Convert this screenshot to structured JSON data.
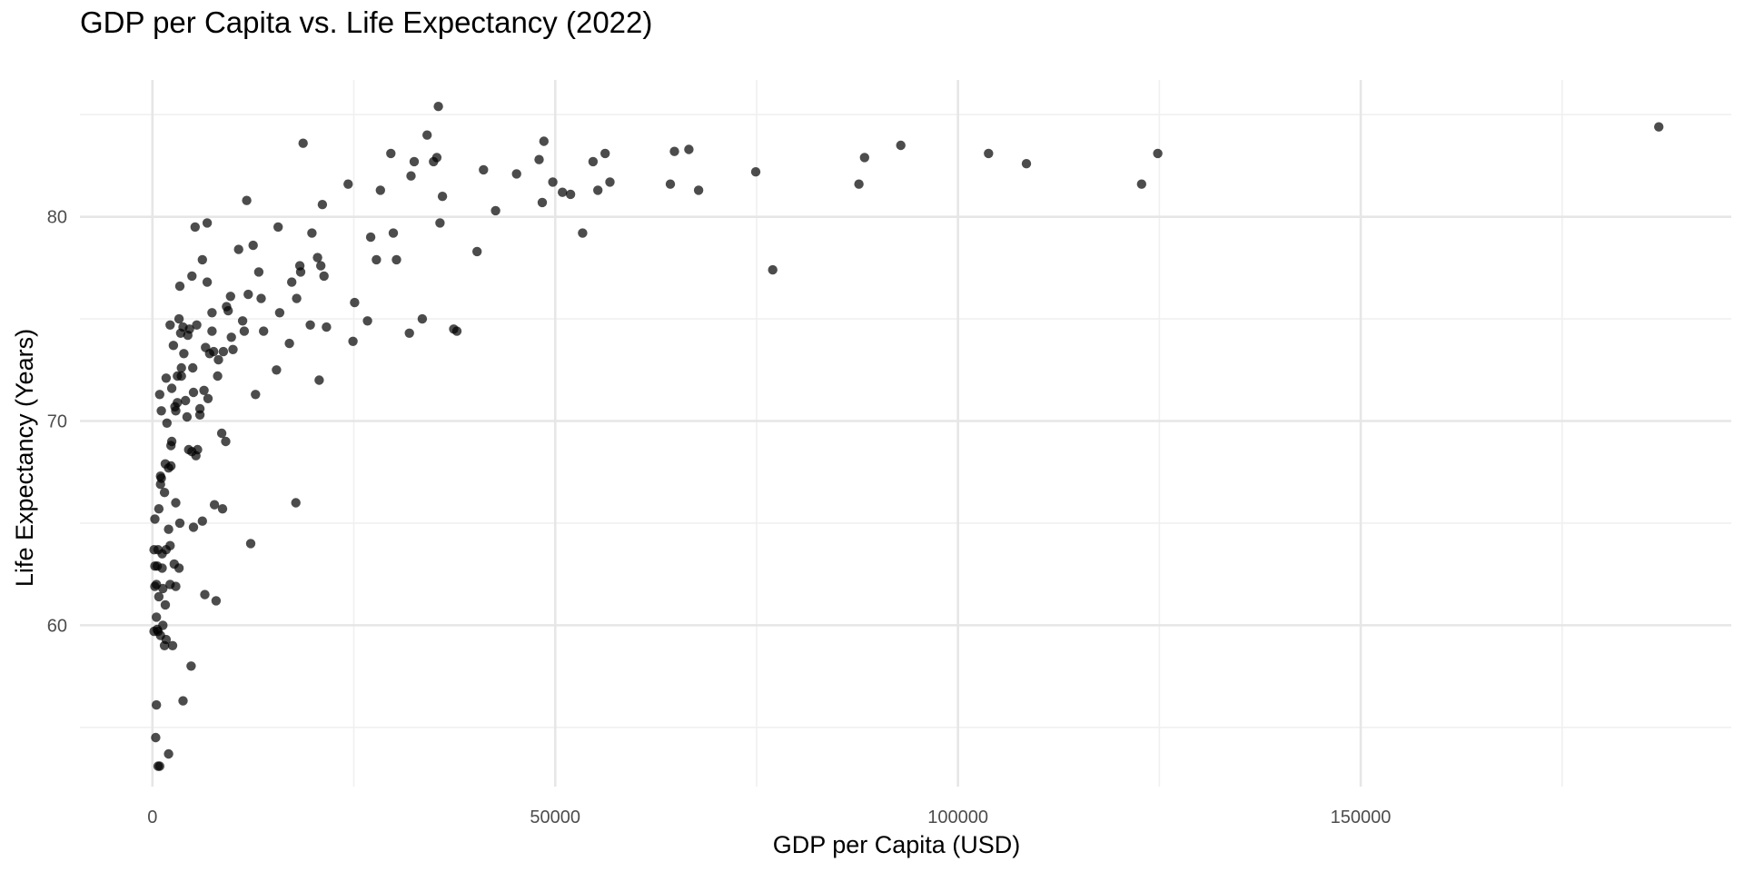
{
  "chart_data": {
    "type": "scatter",
    "title": "GDP per Capita vs. Life Expectancy (2022)",
    "xlabel": "GDP per Capita (USD)",
    "ylabel": "Life Expectancy (Years)",
    "xlim": [
      -9000,
      196000
    ],
    "ylim": [
      52.1,
      86.7
    ],
    "x_ticks": [
      0,
      50000,
      100000,
      150000
    ],
    "x_tick_labels": [
      "0",
      "50000",
      "100000",
      "150000"
    ],
    "x_minor": [
      25000,
      75000,
      125000,
      175000
    ],
    "y_ticks": [
      60,
      70,
      80
    ],
    "y_tick_labels": [
      "60",
      "70",
      "80"
    ],
    "y_minor": [
      55,
      65,
      75,
      85
    ],
    "grid": true,
    "legend": "none",
    "point_color": "#000000",
    "point_alpha": 0.7,
    "points": [
      [
        187000,
        84.4
      ],
      [
        124800,
        83.1
      ],
      [
        122800,
        81.6
      ],
      [
        108500,
        82.6
      ],
      [
        103800,
        83.1
      ],
      [
        92900,
        83.5
      ],
      [
        88400,
        82.9
      ],
      [
        87700,
        81.6
      ],
      [
        77000,
        77.4
      ],
      [
        74900,
        82.2
      ],
      [
        67800,
        81.3
      ],
      [
        66600,
        83.3
      ],
      [
        64800,
        83.2
      ],
      [
        64300,
        81.6
      ],
      [
        56800,
        81.7
      ],
      [
        56200,
        83.1
      ],
      [
        55300,
        81.3
      ],
      [
        54700,
        82.7
      ],
      [
        53400,
        79.2
      ],
      [
        51900,
        81.1
      ],
      [
        50900,
        81.2
      ],
      [
        49700,
        81.7
      ],
      [
        48600,
        83.7
      ],
      [
        48400,
        80.7
      ],
      [
        48000,
        82.8
      ],
      [
        45200,
        82.1
      ],
      [
        42600,
        80.3
      ],
      [
        41100,
        82.3
      ],
      [
        40300,
        78.3
      ],
      [
        37800,
        74.4
      ],
      [
        37400,
        74.5
      ],
      [
        36000,
        81.0
      ],
      [
        35700,
        79.7
      ],
      [
        35500,
        85.4
      ],
      [
        35300,
        82.9
      ],
      [
        34900,
        82.7
      ],
      [
        34100,
        84.0
      ],
      [
        33500,
        75.0
      ],
      [
        32500,
        82.7
      ],
      [
        32100,
        82.0
      ],
      [
        31900,
        74.3
      ],
      [
        30300,
        77.9
      ],
      [
        29900,
        79.2
      ],
      [
        29600,
        83.1
      ],
      [
        28300,
        81.3
      ],
      [
        27800,
        77.9
      ],
      [
        27100,
        79.0
      ],
      [
        26700,
        74.9
      ],
      [
        25100,
        75.8
      ],
      [
        24900,
        73.9
      ],
      [
        24300,
        81.6
      ],
      [
        21600,
        74.6
      ],
      [
        21300,
        77.1
      ],
      [
        21100,
        80.6
      ],
      [
        20900,
        77.6
      ],
      [
        20700,
        72.0
      ],
      [
        20500,
        78.0
      ],
      [
        19800,
        79.2
      ],
      [
        19600,
        74.7
      ],
      [
        18700,
        83.6
      ],
      [
        18400,
        77.3
      ],
      [
        18300,
        77.6
      ],
      [
        17900,
        76.0
      ],
      [
        17800,
        66.0
      ],
      [
        17300,
        76.8
      ],
      [
        17000,
        73.8
      ],
      [
        15800,
        75.3
      ],
      [
        15600,
        79.5
      ],
      [
        15400,
        72.5
      ],
      [
        13800,
        74.4
      ],
      [
        13500,
        76.0
      ],
      [
        13200,
        77.3
      ],
      [
        12800,
        71.3
      ],
      [
        12500,
        78.6
      ],
      [
        12200,
        64.0
      ],
      [
        11900,
        76.2
      ],
      [
        11700,
        80.8
      ],
      [
        11400,
        74.4
      ],
      [
        11200,
        74.9
      ],
      [
        10700,
        78.4
      ],
      [
        10000,
        73.5
      ],
      [
        9800,
        74.1
      ],
      [
        9700,
        76.1
      ],
      [
        9400,
        75.4
      ],
      [
        9200,
        75.6
      ],
      [
        9100,
        69.0
      ],
      [
        8800,
        73.4
      ],
      [
        8600,
        69.4
      ],
      [
        8700,
        65.7
      ],
      [
        8200,
        73.0
      ],
      [
        8100,
        72.2
      ],
      [
        7900,
        61.2
      ],
      [
        7700,
        65.9
      ],
      [
        7600,
        73.4
      ],
      [
        7400,
        74.4
      ],
      [
        7400,
        75.3
      ],
      [
        7100,
        73.3
      ],
      [
        6900,
        71.1
      ],
      [
        6800,
        79.7
      ],
      [
        6800,
        76.8
      ],
      [
        6600,
        73.6
      ],
      [
        6500,
        61.5
      ],
      [
        6400,
        71.5
      ],
      [
        6200,
        77.9
      ],
      [
        6200,
        65.1
      ],
      [
        5900,
        70.3
      ],
      [
        5900,
        70.6
      ],
      [
        5600,
        68.6
      ],
      [
        5500,
        74.7
      ],
      [
        5400,
        68.3
      ],
      [
        5300,
        79.5
      ],
      [
        5100,
        71.4
      ],
      [
        5100,
        64.8
      ],
      [
        5000,
        72.6
      ],
      [
        4900,
        68.5
      ],
      [
        4900,
        77.1
      ],
      [
        4800,
        58.0
      ],
      [
        4600,
        74.5
      ],
      [
        4500,
        68.6
      ],
      [
        4400,
        74.2
      ],
      [
        4300,
        70.2
      ],
      [
        4100,
        71.0
      ],
      [
        3900,
        73.3
      ],
      [
        3800,
        74.6
      ],
      [
        3800,
        56.3
      ],
      [
        3600,
        72.6
      ],
      [
        3600,
        72.2
      ],
      [
        3500,
        74.3
      ],
      [
        3400,
        76.6
      ],
      [
        3400,
        65.0
      ],
      [
        3300,
        75.0
      ],
      [
        3300,
        62.8
      ],
      [
        3100,
        70.9
      ],
      [
        3100,
        72.2
      ],
      [
        2900,
        66.0
      ],
      [
        2900,
        70.5
      ],
      [
        2900,
        61.9
      ],
      [
        2800,
        70.7
      ],
      [
        2700,
        63.0
      ],
      [
        2600,
        73.7
      ],
      [
        2500,
        59.0
      ],
      [
        2400,
        71.6
      ],
      [
        2400,
        69.0
      ],
      [
        2300,
        67.8
      ],
      [
        2300,
        68.8
      ],
      [
        2200,
        74.7
      ],
      [
        2200,
        62.0
      ],
      [
        2200,
        63.9
      ],
      [
        2000,
        64.7
      ],
      [
        2000,
        53.7
      ],
      [
        2000,
        67.7
      ],
      [
        1800,
        69.9
      ],
      [
        1700,
        72.1
      ],
      [
        1700,
        63.7
      ],
      [
        1700,
        59.3
      ],
      [
        1600,
        61.0
      ],
      [
        1600,
        67.9
      ],
      [
        1500,
        59.0
      ],
      [
        1500,
        66.5
      ],
      [
        1300,
        60.0
      ],
      [
        1300,
        61.8
      ],
      [
        1200,
        63.5
      ],
      [
        1200,
        62.8
      ],
      [
        1100,
        70.5
      ],
      [
        1100,
        67.2
      ],
      [
        1000,
        66.9
      ],
      [
        1000,
        59.5
      ],
      [
        1000,
        67.3
      ],
      [
        900,
        71.3
      ],
      [
        900,
        53.1
      ],
      [
        800,
        65.7
      ],
      [
        800,
        61.4
      ],
      [
        700,
        63.7
      ],
      [
        700,
        59.7
      ],
      [
        700,
        53.1
      ],
      [
        600,
        62.9
      ],
      [
        600,
        59.8
      ],
      [
        500,
        62.0
      ],
      [
        500,
        60.4
      ],
      [
        500,
        56.1
      ],
      [
        400,
        54.5
      ],
      [
        300,
        65.2
      ],
      [
        300,
        62.9
      ],
      [
        300,
        61.9
      ],
      [
        200,
        59.7
      ],
      [
        200,
        63.7
      ]
    ]
  }
}
